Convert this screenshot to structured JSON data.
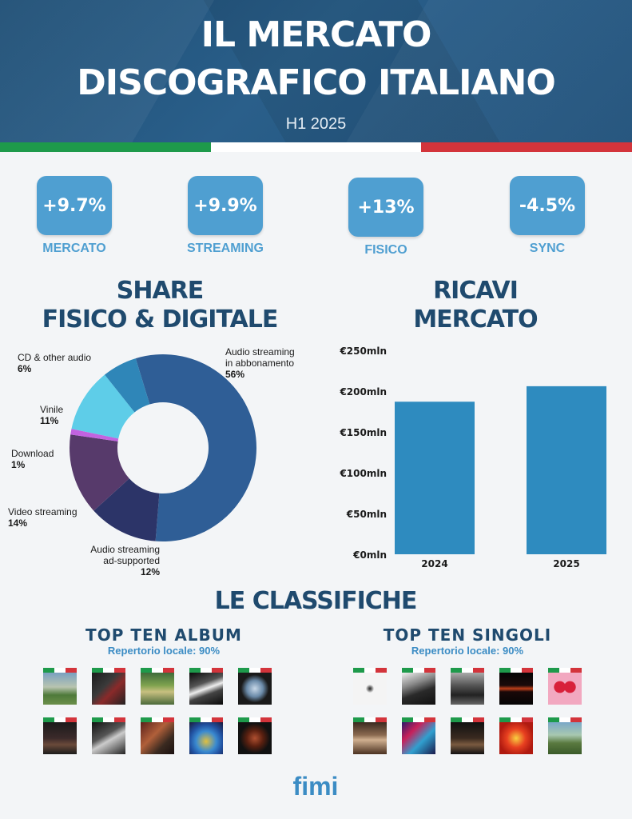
{
  "header": {
    "title_line1": "IL MERCATO",
    "title_line2": "DISCOGRAFICO ITALIANO",
    "subtitle": "H1 2025"
  },
  "colors": {
    "header_bg": "#1f507a",
    "flag_green": "#1e9a4b",
    "flag_white": "#ffffff",
    "flag_red": "#d3343b",
    "kpi_box": "#4f9fd1",
    "title_dark": "#1f4a6e",
    "bar": "#2e8bbf"
  },
  "kpis": [
    {
      "value": "+9.7%",
      "label": "MERCATO"
    },
    {
      "value": "+9.9%",
      "label": "STREAMING"
    },
    {
      "value": "+13%",
      "label": "FISICO"
    },
    {
      "value": "-4.5%",
      "label": "SYNC"
    }
  ],
  "share_title": {
    "line1": "SHARE",
    "line2": "FISICO & DIGITALE"
  },
  "revenue_title": {
    "line1": "RICAVI",
    "line2": "MERCATO"
  },
  "chart_data": [
    {
      "type": "pie",
      "donut": true,
      "slices": [
        {
          "label": "Audio streaming in abbonamento",
          "label_lines": [
            "Audio streaming",
            "in abbonamento"
          ],
          "pct_text": "56%",
          "value": 56,
          "color": "#2f5e96"
        },
        {
          "label": "Audio streaming ad-supported",
          "label_lines": [
            "Audio streaming",
            "ad-supported"
          ],
          "pct_text": "12%",
          "value": 12,
          "color": "#2c3468"
        },
        {
          "label": "Video streaming",
          "label_lines": [
            "Video streaming"
          ],
          "pct_text": "14%",
          "value": 14,
          "color": "#573a6b"
        },
        {
          "label": "Download",
          "label_lines": [
            "Download"
          ],
          "pct_text": "1%",
          "value": 1,
          "color": "#c263e0"
        },
        {
          "label": "Vinile",
          "label_lines": [
            "Vinile"
          ],
          "pct_text": "11%",
          "value": 11,
          "color": "#5ecde8"
        },
        {
          "label": "CD & other audio",
          "label_lines": [
            "CD & other audio"
          ],
          "pct_text": "6%",
          "value": 6,
          "color": "#2f86b8"
        }
      ]
    },
    {
      "type": "bar",
      "categories": [
        "2024",
        "2025"
      ],
      "values": [
        187,
        206
      ],
      "yticks": [
        "€0mln",
        "€50mln",
        "€100mln",
        "€150mln",
        "€200mln",
        "€250mln"
      ],
      "ylim": [
        0,
        250
      ],
      "color": "#2e8bbf"
    }
  ],
  "classifiche": {
    "title": "LE CLASSIFICHE",
    "albums": {
      "title": "TOP TEN ALBUM",
      "note": "Repertorio locale: 90%",
      "covers": [
        {
          "art": "linear-gradient(180deg,#7aa0c0 0%,#b8c4b0 45%,#4e7a3a 70%,#6b8f4a 100%)"
        },
        {
          "art": "linear-gradient(135deg,#1a1a1a 0%,#3a3a3a 40%,#8a2a2a 60%,#222 100%)"
        },
        {
          "art": "linear-gradient(180deg,#3f6b3a 0%,#7fa34f 40%,#c8c080 60%,#4b6a3a 100%)"
        },
        {
          "art": "linear-gradient(160deg,#0a0a0a 0%,#555 35%,#eee 50%,#444 65%,#0a0a0a 100%)"
        },
        {
          "art": "radial-gradient(circle at 50% 50%,#c8d8e8 0%,#6a8aa8 35%,#1a1a1a 60%)"
        },
        {
          "art": "linear-gradient(180deg,#1b1b1b 0%,#3b2a2a 50%,#6a4a3a 70%,#1b1b1b 100%)"
        },
        {
          "art": "linear-gradient(150deg,#111 0%,#555 40%,#ccc 55%,#222 100%)"
        },
        {
          "art": "linear-gradient(135deg,#5a1f1a 0%,#b0603a 40%,#3a2a20 70%,#1a1010 100%)"
        },
        {
          "art": "radial-gradient(circle at 50% 60%,#e0c040 0%,#3a8ad0 40%,#2050a0 65%,#1a1a3a 100%)"
        },
        {
          "art": "radial-gradient(circle at 50% 50%,#b05030 0%,#5a2010 35%,#111 65%)"
        }
      ]
    },
    "singles": {
      "title": "TOP TEN SINGOLI",
      "note": "Repertorio locale: 90%",
      "covers": [
        {
          "art": "radial-gradient(circle at 50% 50%,#222 0%,#777 8%,#f4f4f4 18%)"
        },
        {
          "art": "linear-gradient(160deg,#f0f0f0 0%,#888 35%,#2a2a2a 60%,#111 100%)"
        },
        {
          "art": "linear-gradient(180deg,#aaa 0%,#555 40%,#222 70%,#666 100%)"
        },
        {
          "art": "linear-gradient(180deg,#050505 0%,#1a0a0a 40%,#c0401a 50%,#1a0808 60%,#050505 100%)"
        },
        {
          "art": "radial-gradient(circle at 35% 45%,#d8203a 0%,#d8203a 20%,transparent 22%),radial-gradient(circle at 65% 45%,#d8203a 0%,#d8203a 20%,transparent 22%),#f2a8c0"
        },
        {
          "art": "linear-gradient(180deg,#3a2a20 0%,#8a6a50 40%,#d0b090 55%,#4a3020 100%)"
        },
        {
          "art": "linear-gradient(135deg,#2a1a6a 0%,#c8205a 30%,#30a0d0 60%,#1a1a4a 100%)"
        },
        {
          "art": "linear-gradient(180deg,#111 0%,#3a2a20 50%,#7a5a40 70%,#111 100%)"
        },
        {
          "art": "radial-gradient(circle at 50% 50%,#f8d040 0%,#e84020 40%,#b01a10 75%)"
        },
        {
          "art": "linear-gradient(180deg,#7aa8c8 0%,#a8c8b0 40%,#5a7a40 65%,#3a5a2a 100%)"
        }
      ]
    }
  },
  "logo": "fimi"
}
